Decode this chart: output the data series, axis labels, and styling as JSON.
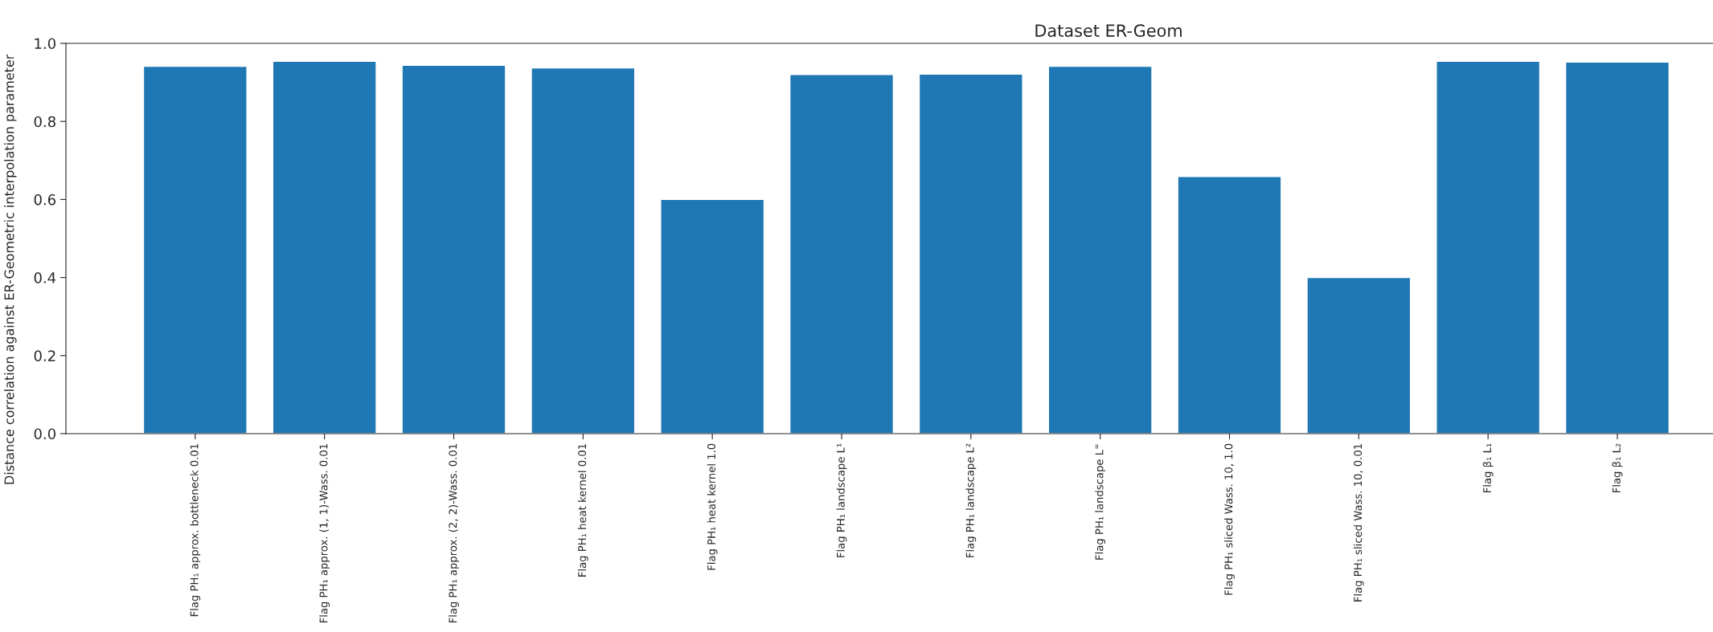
{
  "chart_data": {
    "type": "bar",
    "title": "Dataset ER-Geom",
    "ylabel": "Distance correlation against ER-Geometric interpolation parameter",
    "categories": [
      "Flag PH₁ approx. bottleneck 0.01",
      "Flag PH₁ approx. (1, 1)-Wass. 0.01",
      "Flag PH₁ approx. (2, 2)-Wass. 0.01",
      "Flag PH₁ heat kernel 0.01",
      "Flag PH₁ heat kernel 1.0",
      "Flag PH₁ landscape L¹",
      "Flag PH₁ landscape L²",
      "Flag PH₁ landscape L$^{∞}$",
      "Flag PH₁ sliced Wass. 10, 1.0",
      "Flag PH₁ sliced Wass. 10, 0.01",
      "Flag β₁ L₁",
      "Flag β₁ L₂"
    ],
    "values": [
      0.941,
      0.954,
      0.944,
      0.937,
      0.6,
      0.92,
      0.921,
      0.941,
      0.659,
      0.4,
      0.954,
      0.952
    ],
    "color": "#1f77b4",
    "ylim": [
      0,
      1.0
    ],
    "yticks": [
      {
        "value": 0,
        "label": "0.0"
      },
      0.2,
      0.4,
      0.6,
      0.8,
      {
        "value": 1.0,
        "label": "1.0"
      }
    ],
    "grid": false
  }
}
